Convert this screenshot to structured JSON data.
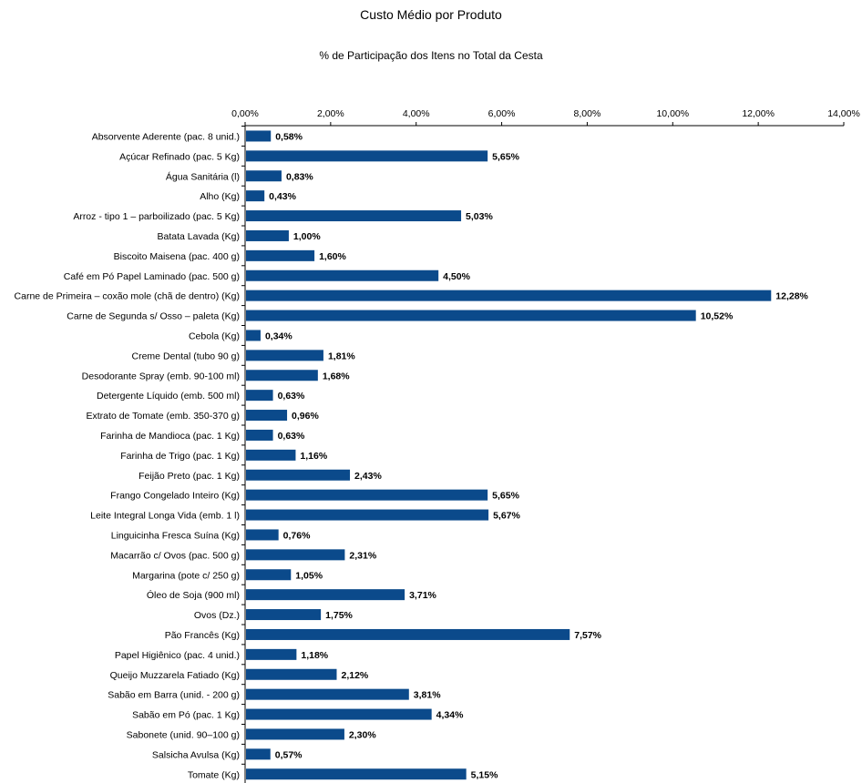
{
  "chart_data": {
    "type": "bar",
    "orientation": "horizontal",
    "title": "Custo Médio por Produto",
    "subtitle": "% de Participação dos Itens no Total da Cesta",
    "xlim": [
      0,
      14
    ],
    "x_ticks": [
      "0,00%",
      "2,00%",
      "4,00%",
      "6,00%",
      "8,00%",
      "10,00%",
      "12,00%",
      "14,00%"
    ],
    "x_axis_position": "top",
    "grid": false,
    "bar_color": "#0b4a8b",
    "categories": [
      "Absorvente Aderente (pac. 8 unid.)",
      "Açúcar Refinado (pac. 5 Kg)",
      "Água Sanitária (l)",
      "Alho (Kg)",
      "Arroz - tipo 1 – parboilizado (pac. 5 Kg)",
      "Batata Lavada (Kg)",
      "Biscoito Maisena (pac. 400 g)",
      "Café em Pó Papel Laminado (pac. 500 g)",
      "Carne de Primeira – coxão mole (chã de dentro) (Kg)",
      "Carne de Segunda s/ Osso – paleta (Kg)",
      "Cebola (Kg)",
      "Creme Dental (tubo 90 g)",
      "Desodorante Spray (emb. 90-100 ml)",
      "Detergente Líquido (emb. 500 ml)",
      "Extrato de Tomate (emb. 350-370 g)",
      "Farinha de Mandioca (pac. 1 Kg)",
      "Farinha de Trigo (pac. 1 Kg)",
      "Feijão Preto (pac. 1 Kg)",
      "Frango Congelado Inteiro (Kg)",
      "Leite Integral Longa Vida (emb. 1 l)",
      "Linguicinha Fresca Suína (Kg)",
      "Macarrão c/ Ovos (pac. 500 g)",
      "Margarina (pote c/ 250 g)",
      "Óleo de Soja (900 ml)",
      "Ovos (Dz.)",
      "Pão Francês (Kg)",
      "Papel Higiênico (pac. 4 unid.)",
      "Queijo Muzzarela Fatiado (Kg)",
      "Sabão em Barra (unid. - 200 g)",
      "Sabão em Pó (pac. 1 Kg)",
      "Sabonete (unid. 90–100 g)",
      "Salsicha Avulsa (Kg)",
      "Tomate (Kg)"
    ],
    "values": [
      0.58,
      5.65,
      0.83,
      0.43,
      5.03,
      1.0,
      1.6,
      4.5,
      12.28,
      10.52,
      0.34,
      1.81,
      1.68,
      0.63,
      0.96,
      0.63,
      1.16,
      2.43,
      5.65,
      5.67,
      0.76,
      2.31,
      1.05,
      3.71,
      1.75,
      7.57,
      1.18,
      2.12,
      3.81,
      4.34,
      2.3,
      0.57,
      5.15
    ],
    "value_labels": [
      "0,58%",
      "5,65%",
      "0,83%",
      "0,43%",
      "5,03%",
      "1,00%",
      "1,60%",
      "4,50%",
      "12,28%",
      "10,52%",
      "0,34%",
      "1,81%",
      "1,68%",
      "0,63%",
      "0,96%",
      "0,63%",
      "1,16%",
      "2,43%",
      "5,65%",
      "5,67%",
      "0,76%",
      "2,31%",
      "1,05%",
      "3,71%",
      "1,75%",
      "7,57%",
      "1,18%",
      "2,12%",
      "3,81%",
      "4,34%",
      "2,30%",
      "0,57%",
      "5,15%"
    ]
  }
}
